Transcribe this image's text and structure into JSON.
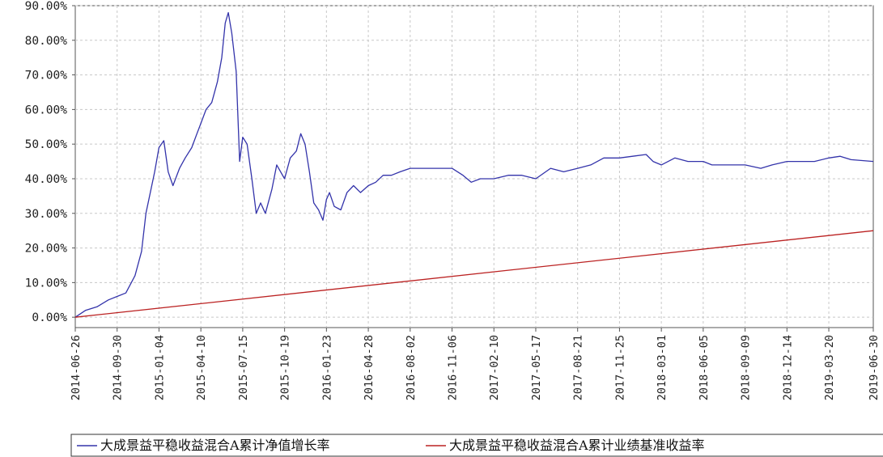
{
  "chart_data": {
    "type": "line",
    "title": "",
    "xlabel": "",
    "ylabel": "",
    "ylim": [
      -0.03,
      0.9
    ],
    "grid": true,
    "legend_placement": "bottom-center",
    "y_tick_values": [
      0,
      0.1,
      0.2,
      0.3,
      0.4,
      0.5,
      0.6,
      0.7,
      0.8,
      0.9
    ],
    "y_tick_labels": [
      "0.00%",
      "10.00%",
      "20.00%",
      "30.00%",
      "40.00%",
      "50.00%",
      "60.00%",
      "70.00%",
      "80.00%",
      "90.00%"
    ],
    "x_tick_labels": [
      "2014-06-26",
      "2014-09-30",
      "2015-01-04",
      "2015-04-10",
      "2015-07-15",
      "2015-10-19",
      "2016-01-23",
      "2016-04-28",
      "2016-08-02",
      "2016-11-06",
      "2017-02-10",
      "2017-05-17",
      "2017-08-21",
      "2017-11-25",
      "2018-03-01",
      "2018-06-05",
      "2018-09-09",
      "2018-12-14",
      "2019-03-20",
      "2019-06-30"
    ],
    "series": [
      {
        "name": "大成景益平稳收益混合A累计净值增长率",
        "color": "#3333aa",
        "x": [
          "2014-06-26",
          "2014-07-20",
          "2014-08-15",
          "2014-09-10",
          "2014-09-30",
          "2014-10-20",
          "2014-11-10",
          "2014-11-25",
          "2014-12-05",
          "2014-12-15",
          "2014-12-25",
          "2015-01-04",
          "2015-01-15",
          "2015-01-25",
          "2015-02-05",
          "2015-02-20",
          "2015-03-05",
          "2015-03-20",
          "2015-04-01",
          "2015-04-10",
          "2015-04-22",
          "2015-05-05",
          "2015-05-18",
          "2015-05-28",
          "2015-06-05",
          "2015-06-12",
          "2015-06-20",
          "2015-06-30",
          "2015-07-08",
          "2015-07-15",
          "2015-07-25",
          "2015-08-05",
          "2015-08-15",
          "2015-08-25",
          "2015-09-05",
          "2015-09-20",
          "2015-10-01",
          "2015-10-19",
          "2015-11-01",
          "2015-11-15",
          "2015-11-25",
          "2015-12-05",
          "2015-12-15",
          "2015-12-25",
          "2016-01-05",
          "2016-01-15",
          "2016-01-23",
          "2016-01-30",
          "2016-02-10",
          "2016-02-25",
          "2016-03-10",
          "2016-03-25",
          "2016-04-10",
          "2016-04-28",
          "2016-05-15",
          "2016-06-01",
          "2016-06-20",
          "2016-07-10",
          "2016-08-02",
          "2016-09-01",
          "2016-10-01",
          "2016-11-06",
          "2016-12-01",
          "2016-12-20",
          "2017-01-10",
          "2017-02-10",
          "2017-03-15",
          "2017-04-15",
          "2017-05-17",
          "2017-06-20",
          "2017-07-20",
          "2017-08-21",
          "2017-09-20",
          "2017-10-20",
          "2017-11-25",
          "2017-12-25",
          "2018-01-25",
          "2018-02-10",
          "2018-03-01",
          "2018-04-01",
          "2018-05-01",
          "2018-06-05",
          "2018-06-25",
          "2018-07-20",
          "2018-08-15",
          "2018-09-09",
          "2018-10-15",
          "2018-11-10",
          "2018-12-14",
          "2019-01-15",
          "2019-02-15",
          "2019-03-20",
          "2019-04-15",
          "2019-05-10",
          "2019-06-30"
        ],
        "values": [
          0.0,
          0.02,
          0.03,
          0.05,
          0.06,
          0.07,
          0.12,
          0.19,
          0.3,
          0.36,
          0.42,
          0.49,
          0.51,
          0.42,
          0.38,
          0.43,
          0.46,
          0.49,
          0.53,
          0.56,
          0.6,
          0.62,
          0.68,
          0.75,
          0.85,
          0.88,
          0.82,
          0.71,
          0.45,
          0.52,
          0.5,
          0.4,
          0.3,
          0.33,
          0.3,
          0.37,
          0.44,
          0.4,
          0.46,
          0.48,
          0.53,
          0.5,
          0.42,
          0.33,
          0.31,
          0.28,
          0.34,
          0.36,
          0.32,
          0.31,
          0.36,
          0.38,
          0.36,
          0.38,
          0.39,
          0.41,
          0.41,
          0.42,
          0.43,
          0.43,
          0.43,
          0.43,
          0.41,
          0.39,
          0.4,
          0.4,
          0.41,
          0.41,
          0.4,
          0.43,
          0.42,
          0.43,
          0.44,
          0.46,
          0.46,
          0.465,
          0.47,
          0.45,
          0.44,
          0.46,
          0.45,
          0.45,
          0.44,
          0.44,
          0.44,
          0.44,
          0.43,
          0.44,
          0.45,
          0.45,
          0.45,
          0.46,
          0.465,
          0.455,
          0.45
        ]
      },
      {
        "name": "大成景益平稳收益混合A累计业绩基准收益率",
        "color": "#bb2222",
        "x": [
          "2014-06-26",
          "2019-06-30"
        ],
        "values": [
          0.0,
          0.25
        ]
      }
    ]
  }
}
